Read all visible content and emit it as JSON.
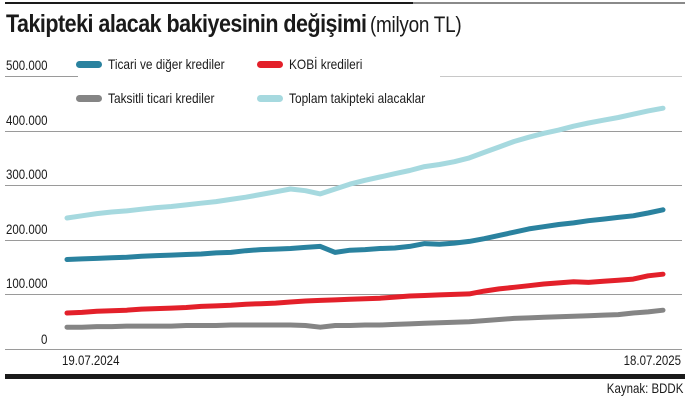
{
  "header": {
    "title": "Takipteki alacak bakiyesinin değişimi",
    "unit": "(milyon TL)"
  },
  "legend": [
    {
      "label": "Ticari ve diğer krediler",
      "color": "#2a829f"
    },
    {
      "label": "KOBİ kredileri",
      "color": "#e3202a"
    },
    {
      "label": "Taksitli ticari krediler",
      "color": "#858585"
    },
    {
      "label": "Toplam takipteki alacaklar",
      "color": "#a6d9df"
    }
  ],
  "y_ticks": [
    "500.000",
    "400.000",
    "300.000",
    "200.000",
    "100.000",
    "0"
  ],
  "x_ticks": {
    "start": "19.07.2024",
    "end": "18.07.2025"
  },
  "footer": {
    "source": "Kaynak: BDDK"
  },
  "chart_data": {
    "type": "line",
    "title": "Takipteki alacak bakiyesinin değişimi (milyon TL)",
    "xlabel": "",
    "ylabel": "milyon TL",
    "ylim": [
      0,
      500000
    ],
    "grid": true,
    "legend_position": "top",
    "x_range": [
      "19.07.2024",
      "18.07.2025"
    ],
    "x": [
      0,
      1,
      2,
      3,
      4,
      5,
      6,
      7,
      8,
      9,
      10,
      11,
      12,
      13,
      14,
      15,
      16,
      17,
      18,
      19,
      20,
      21,
      22,
      23,
      24,
      25,
      26,
      27,
      28,
      29,
      30,
      31,
      32,
      33,
      34,
      35,
      36,
      37,
      38,
      39,
      40
    ],
    "series": [
      {
        "name": "Ticari ve diğer krediler",
        "color": "#2a829f",
        "values": [
          164000,
          165000,
          166000,
          167000,
          168000,
          170000,
          171000,
          172000,
          173000,
          174000,
          176000,
          177000,
          180000,
          182000,
          183000,
          184000,
          186000,
          188000,
          177000,
          181000,
          182000,
          184000,
          185000,
          188000,
          193000,
          192000,
          194000,
          197000,
          202000,
          208000,
          214000,
          220000,
          224000,
          228000,
          231000,
          235000,
          238000,
          241000,
          244000,
          249000,
          255000
        ]
      },
      {
        "name": "KOBİ kredileri",
        "color": "#e3202a",
        "values": [
          66000,
          67000,
          69000,
          70000,
          71000,
          73000,
          74000,
          75000,
          76000,
          78000,
          79000,
          80000,
          82000,
          83000,
          84000,
          86000,
          88000,
          89000,
          90000,
          91000,
          92000,
          93000,
          95000,
          97000,
          98000,
          99000,
          100000,
          101000,
          106000,
          110000,
          113000,
          116000,
          119000,
          121000,
          123000,
          122000,
          124000,
          126000,
          128000,
          134000,
          137000
        ]
      },
      {
        "name": "Taksitli ticari krediler",
        "color": "#858585",
        "values": [
          40000,
          40000,
          41000,
          41000,
          42000,
          42000,
          42000,
          42000,
          43000,
          43000,
          43000,
          44000,
          44000,
          44000,
          44000,
          44000,
          43000,
          40000,
          43000,
          43000,
          44000,
          44000,
          45000,
          46000,
          47000,
          48000,
          49000,
          50000,
          52000,
          54000,
          56000,
          57000,
          58000,
          59000,
          60000,
          61000,
          62000,
          63000,
          66000,
          68000,
          71000
        ]
      },
      {
        "name": "Toplam takipteki alacaklar",
        "color": "#a6d9df",
        "values": [
          240000,
          244000,
          248000,
          251000,
          253000,
          256000,
          259000,
          261000,
          264000,
          267000,
          270000,
          274000,
          278000,
          283000,
          288000,
          293000,
          290000,
          284000,
          293000,
          302000,
          309000,
          315000,
          321000,
          327000,
          334000,
          338000,
          343000,
          350000,
          360000,
          370000,
          380000,
          388000,
          395000,
          401000,
          408000,
          414000,
          419000,
          424000,
          430000,
          436000,
          441000
        ]
      }
    ]
  }
}
